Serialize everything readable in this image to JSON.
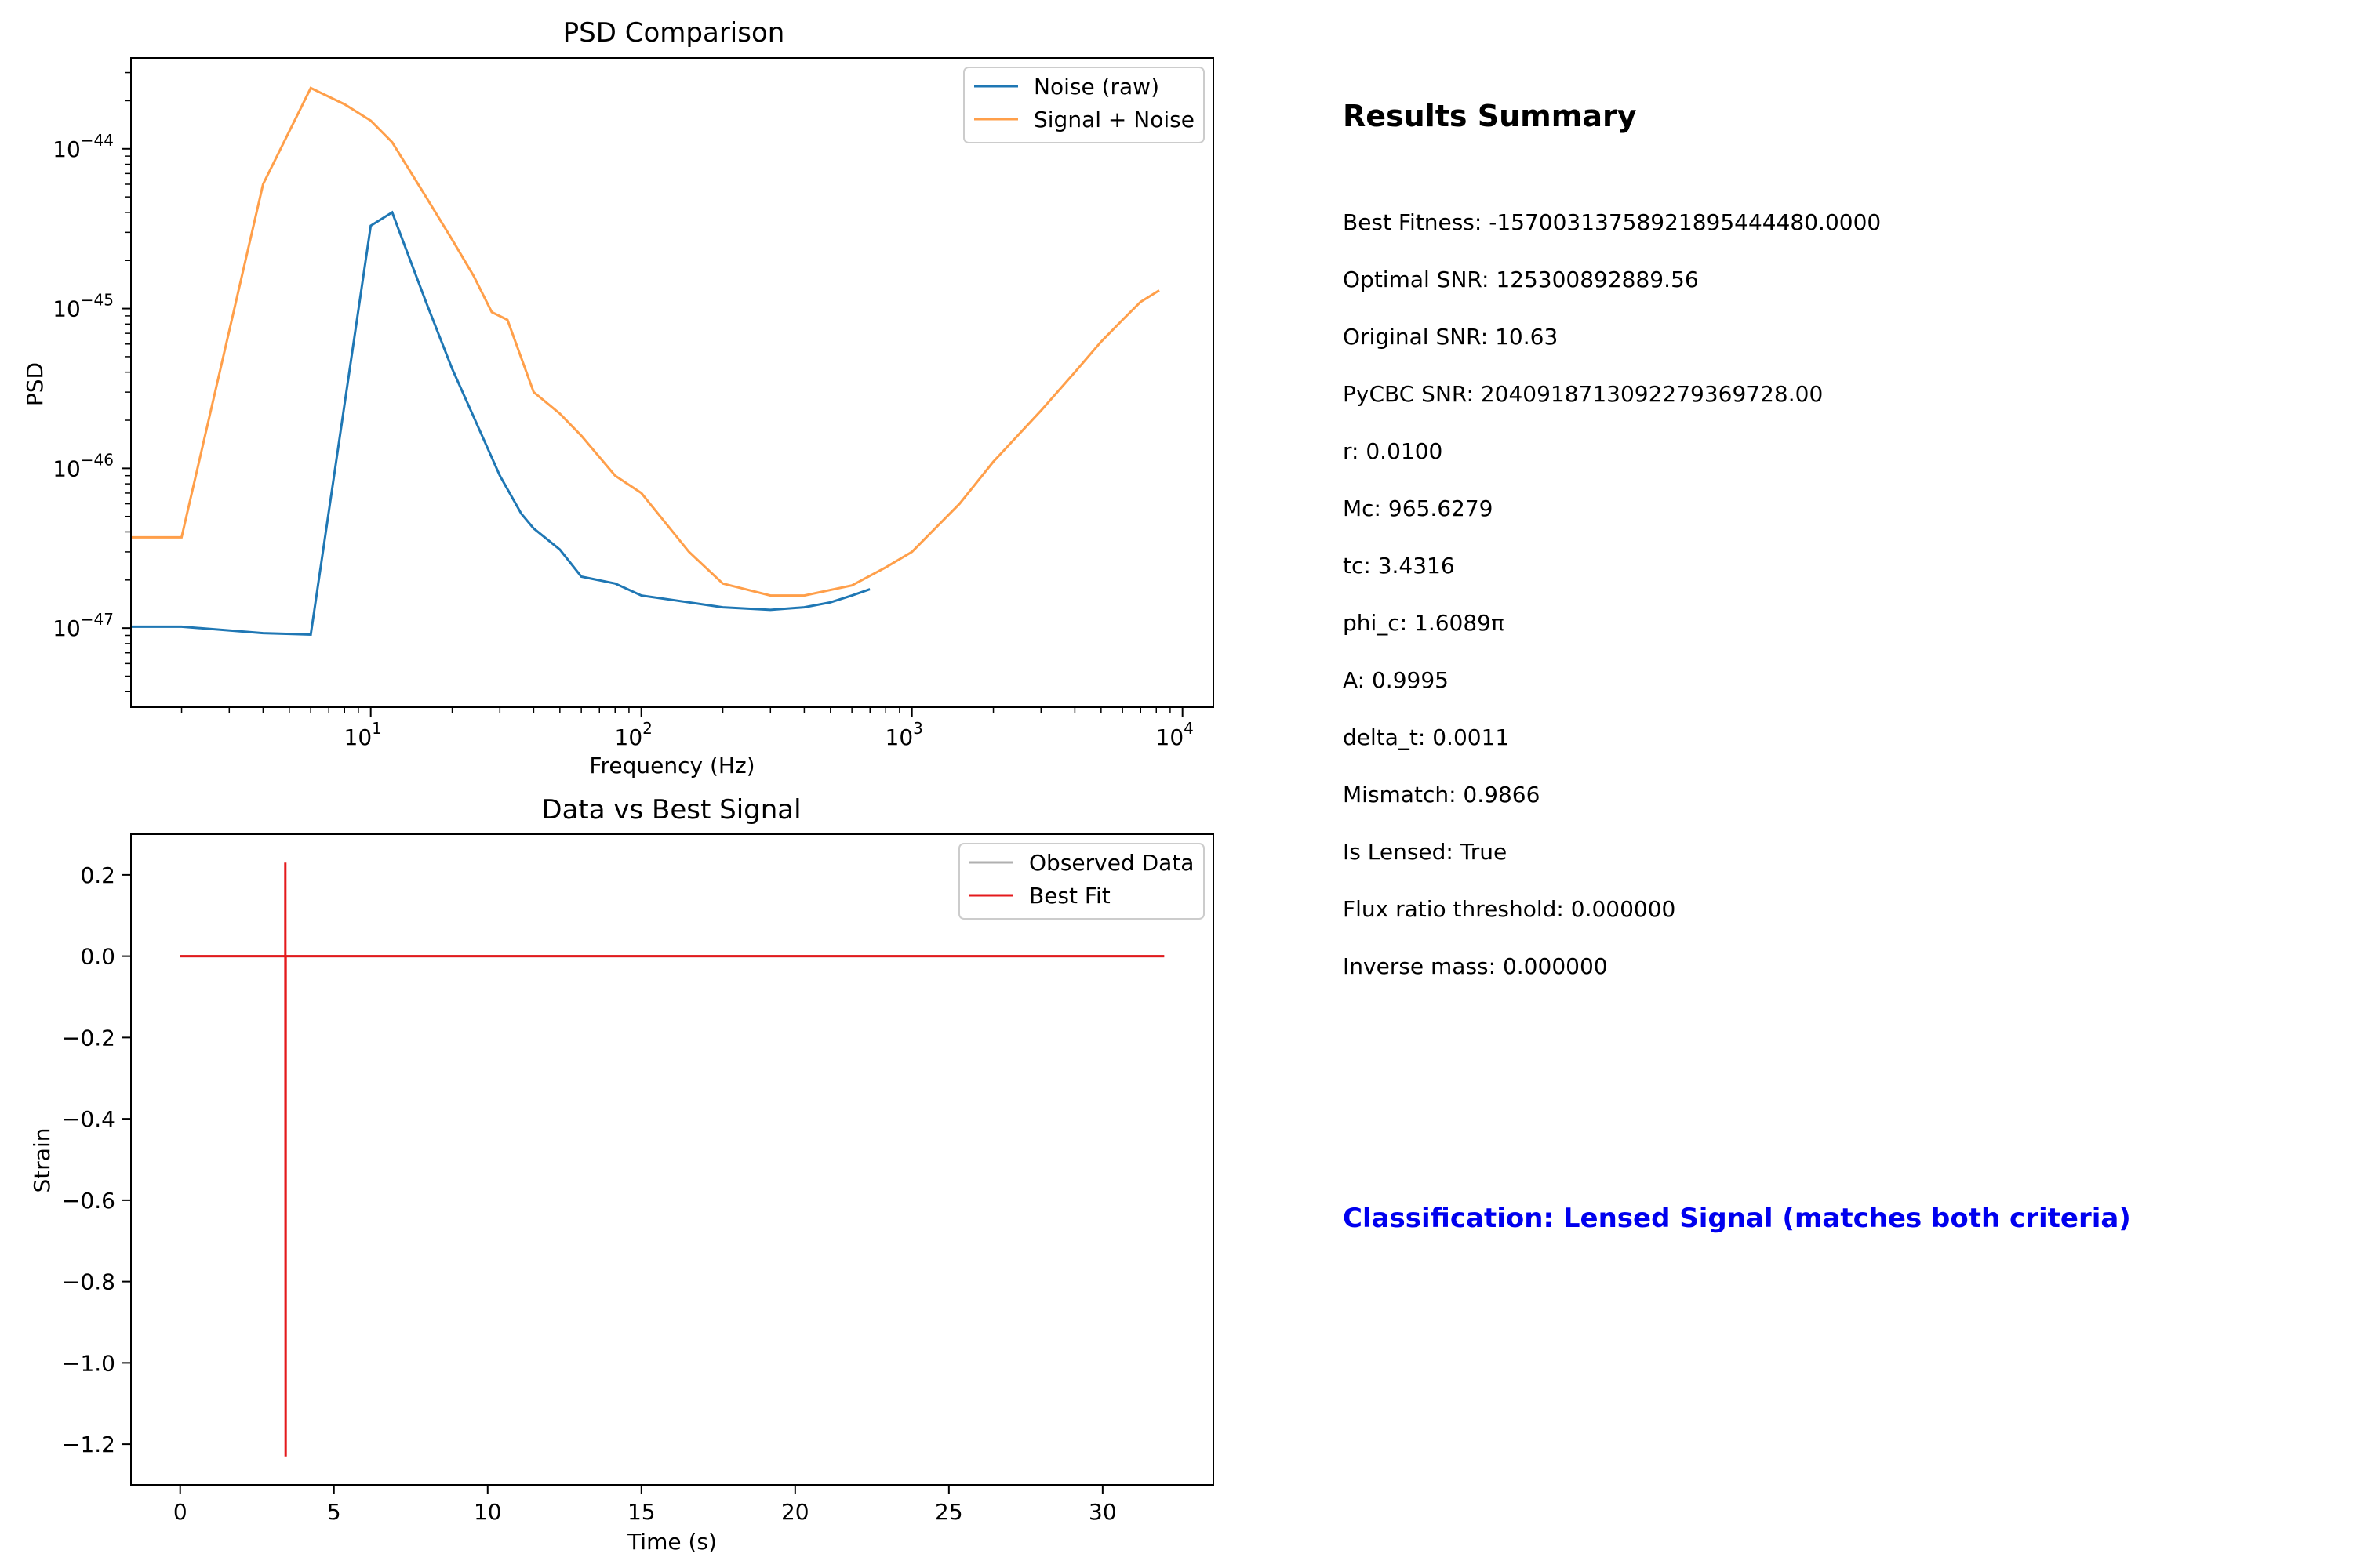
{
  "chart_data": [
    {
      "type": "line",
      "title": "PSD Comparison",
      "xlabel": "Frequency (Hz)",
      "ylabel": "PSD",
      "xscale": "log",
      "yscale": "log",
      "xlim": [
        1.3,
        13000
      ],
      "ylim": [
        3.2e-48,
        3.7e-44
      ],
      "xticks": [
        {
          "value": 10,
          "base": "10",
          "exp": "1"
        },
        {
          "value": 100,
          "base": "10",
          "exp": "2"
        },
        {
          "value": 1000,
          "base": "10",
          "exp": "3"
        },
        {
          "value": 10000,
          "base": "10",
          "exp": "4"
        }
      ],
      "yticks": [
        {
          "value": 1e-47,
          "base": "10",
          "exp": "−47"
        },
        {
          "value": 1e-46,
          "base": "10",
          "exp": "−46"
        },
        {
          "value": 1e-45,
          "base": "10",
          "exp": "−45"
        },
        {
          "value": 1e-44,
          "base": "10",
          "exp": "−44"
        }
      ],
      "legend_position": "top-right",
      "series": [
        {
          "name": "Noise (raw)",
          "color": "#1f77b4",
          "x": [
            1.3,
            2,
            4,
            6,
            10,
            12,
            16,
            20,
            24,
            30,
            36,
            40,
            50,
            60,
            80,
            100,
            150,
            200,
            300,
            400,
            500,
            600,
            700
          ],
          "y": [
            1.02e-47,
            1.02e-47,
            9.3e-48,
            9.1e-48,
            3.3e-45,
            4e-45,
            1.1e-45,
            4.2e-46,
            2.1e-46,
            9e-47,
            5.2e-47,
            4.2e-47,
            3.1e-47,
            2.1e-47,
            1.9e-47,
            1.6e-47,
            1.45e-47,
            1.35e-47,
            1.3e-47,
            1.35e-47,
            1.45e-47,
            1.6e-47,
            1.75e-47
          ]
        },
        {
          "name": "Signal + Noise",
          "color": "#ff7f0e",
          "x": [
            1.3,
            2,
            4,
            6,
            8,
            10,
            12,
            16,
            20,
            24,
            28,
            32,
            40,
            50,
            60,
            80,
            100,
            150,
            200,
            300,
            400,
            600,
            800,
            1000,
            1500,
            2000,
            3000,
            4000,
            5000,
            6000,
            7000,
            8200
          ],
          "y": [
            3.7e-47,
            3.7e-47,
            6e-45,
            2.4e-44,
            1.9e-44,
            1.5e-44,
            1.1e-44,
            5e-45,
            2.7e-45,
            1.6e-45,
            9.5e-46,
            8.5e-46,
            3e-46,
            2.2e-46,
            1.6e-46,
            9e-47,
            7e-47,
            3e-47,
            1.9e-47,
            1.6e-47,
            1.6e-47,
            1.85e-47,
            2.4e-47,
            3e-47,
            6e-47,
            1.1e-46,
            2.3e-46,
            4e-46,
            6.2e-46,
            8.5e-46,
            1.1e-45,
            1.3e-45
          ]
        }
      ]
    },
    {
      "type": "line",
      "title": "Data vs Best Signal",
      "xlabel": "Time (s)",
      "ylabel": "Strain",
      "xlim": [
        -1.6,
        33.6
      ],
      "ylim": [
        -1.3,
        0.3
      ],
      "xticks": [
        0,
        5,
        10,
        15,
        20,
        25,
        30
      ],
      "yticks": [
        "0.2",
        "0.0",
        "−0.2",
        "−0.4",
        "−0.6",
        "−0.8",
        "−1.0",
        "−1.2"
      ],
      "ytick_values": [
        0.2,
        0.0,
        -0.2,
        -0.4,
        -0.6,
        -0.8,
        -1.0,
        -1.2
      ],
      "legend_position": "top-right",
      "series": [
        {
          "name": "Observed Data",
          "color": "#b0b0b0",
          "x": [
            0,
            32
          ],
          "y": [
            0,
            0
          ]
        },
        {
          "name": "Best Fit",
          "color": "#e41a1c",
          "x": [
            0,
            3.42,
            3.42,
            3.43,
            3.43,
            32
          ],
          "y": [
            0,
            0,
            0.23,
            -1.23,
            0,
            0
          ]
        }
      ]
    }
  ],
  "summary": {
    "title": "Results Summary",
    "lines": [
      "Best Fitness: -15700313758921895444480.0000",
      "Optimal SNR: 125300892889.56",
      "Original SNR: 10.63",
      "PyCBC SNR: 2040918713092279369728.00",
      "r: 0.0100",
      "Mc: 965.6279",
      "tc: 3.4316",
      "phi_c: 1.6089π",
      "A: 0.9995",
      "delta_t: 0.0011",
      "Mismatch: 0.9866",
      "Is Lensed: True",
      "Flux ratio threshold: 0.000000",
      "Inverse mass: 0.000000"
    ],
    "classification": "Classification: Lensed Signal (matches both criteria)",
    "classification_color": "#0000ee"
  }
}
